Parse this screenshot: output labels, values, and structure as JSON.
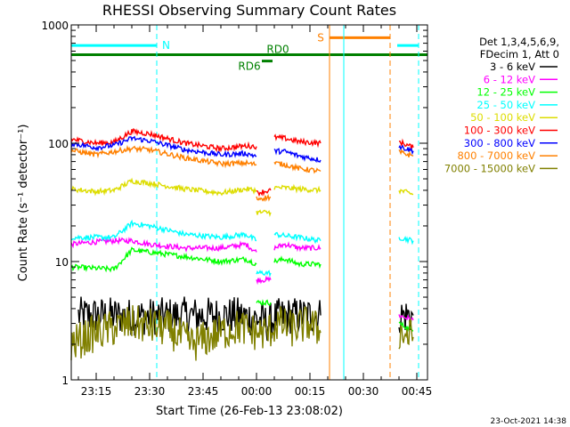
{
  "chart_data": {
    "type": "line",
    "title": "RHESSI Observing Summary Count Rates",
    "xlabel": "Start Time (26-Feb-13 23:08:02)",
    "ylabel": "Count Rate (s⁻¹ detector⁻¹)",
    "y_scale": "log",
    "ylim": [
      1,
      1000
    ],
    "xlim_minutes": [
      -52,
      48
    ],
    "x_ticks": [
      {
        "value": -45,
        "label": "23:15"
      },
      {
        "value": -30,
        "label": "23:30"
      },
      {
        "value": -15,
        "label": "23:45"
      },
      {
        "value": 0,
        "label": "00:00"
      },
      {
        "value": 15,
        "label": "00:15"
      },
      {
        "value": 30,
        "label": "00:30"
      },
      {
        "value": 45,
        "label": "00:45"
      }
    ],
    "y_ticks": [
      {
        "value": 1,
        "label": "1"
      },
      {
        "value": 10,
        "label": "10"
      },
      {
        "value": 100,
        "label": "100"
      },
      {
        "value": 1000,
        "label": "1000"
      }
    ],
    "legend": {
      "placement": "right",
      "header": [
        "Det 1,3,4,5,6,9,",
        "FDecim 1, Att 0"
      ]
    },
    "series": [
      {
        "name": "3 - 6 keV",
        "color": "#000000",
        "segments": [
          {
            "x": [
              -50,
              -40,
              -35,
              -20,
              -5,
              0,
              3,
              6,
              10,
              18
            ],
            "y": [
              3.5,
              3.5,
              3.4,
              3.5,
              3.5,
              3.3,
              3,
              3.4,
              3.5,
              3.5
            ]
          },
          {
            "x": [
              40,
              44
            ],
            "y": [
              3.5,
              3.5
            ]
          }
        ]
      },
      {
        "name": "6 - 12 keV",
        "color": "#ff00ff",
        "segments": [
          {
            "x": [
              -52,
              -47,
              -40,
              -35,
              -30,
              -20,
              -10,
              -3,
              0
            ],
            "y": [
              14,
              14.5,
              15,
              15,
              14,
              13,
              13,
              14,
              12
            ]
          },
          {
            "x": [
              0,
              4
            ],
            "y": [
              7,
              7
            ]
          },
          {
            "x": [
              5,
              8,
              12,
              18
            ],
            "y": [
              13,
              14,
              13,
              13
            ]
          },
          {
            "x": [
              40,
              44
            ],
            "y": [
              3.5,
              3.2
            ]
          }
        ]
      },
      {
        "name": "12 - 25 keV",
        "color": "#00ff00",
        "segments": [
          {
            "x": [
              -52,
              -40,
              -35,
              -30,
              -20,
              -10,
              -3,
              0
            ],
            "y": [
              9,
              8.6,
              12.5,
              12,
              11,
              10,
              10.5,
              9.5
            ]
          },
          {
            "x": [
              0,
              4
            ],
            "y": [
              4.5,
              4.5
            ]
          },
          {
            "x": [
              5,
              8,
              12,
              18
            ],
            "y": [
              10,
              10.5,
              9.5,
              9.5
            ]
          },
          {
            "x": [
              40,
              44
            ],
            "y": [
              3,
              2.6
            ]
          }
        ]
      },
      {
        "name": "25 - 50 keV",
        "color": "#00ffff",
        "segments": [
          {
            "x": [
              -52,
              -40,
              -35,
              -30,
              -20,
              -10,
              -3,
              0
            ],
            "y": [
              16,
              16,
              21,
              20,
              17,
              16,
              17,
              15
            ]
          },
          {
            "x": [
              0,
              4
            ],
            "y": [
              8,
              8
            ]
          },
          {
            "x": [
              5,
              8,
              12,
              18
            ],
            "y": [
              17,
              16.5,
              16,
              15
            ]
          },
          {
            "x": [
              40,
              44
            ],
            "y": [
              16,
              15
            ]
          }
        ]
      },
      {
        "name": "50 - 100 keV",
        "color": "#dddd00",
        "segments": [
          {
            "x": [
              -52,
              -45,
              -40,
              -35,
              -30,
              -20,
              -10,
              -3,
              0
            ],
            "y": [
              41,
              39,
              40,
              48,
              46,
              41,
              38,
              41,
              40
            ]
          },
          {
            "x": [
              0,
              4
            ],
            "y": [
              26,
              26
            ]
          },
          {
            "x": [
              5,
              8,
              12,
              18
            ],
            "y": [
              42,
              42,
              41,
              40
            ]
          },
          {
            "x": [
              40,
              44
            ],
            "y": [
              40,
              37
            ]
          }
        ]
      },
      {
        "name": "100 - 300 keV",
        "color": "#ff0000",
        "segments": [
          {
            "x": [
              -52,
              -45,
              -40,
              -35,
              -30,
              -20,
              -10,
              -3,
              0
            ],
            "y": [
              108,
              100,
              102,
              126,
              120,
              100,
              90,
              95,
              94
            ]
          },
          {
            "x": [
              0,
              4
            ],
            "y": [
              38,
              40
            ]
          },
          {
            "x": [
              5,
              8,
              12,
              18
            ],
            "y": [
              112,
              110,
              103,
              100
            ]
          },
          {
            "x": [
              40,
              44
            ],
            "y": [
              103,
              92
            ]
          }
        ]
      },
      {
        "name": "300 - 800 keV",
        "color": "#0000ff",
        "segments": [
          {
            "x": [
              -52,
              -45,
              -40,
              -35,
              -30,
              -20,
              -10,
              -3,
              0
            ],
            "y": [
              100,
              92,
              96,
              110,
              105,
              88,
              80,
              82,
              78
            ]
          },
          {
            "x": [
              5,
              8,
              12,
              18
            ],
            "y": [
              86,
              85,
              78,
              72
            ]
          },
          {
            "x": [
              40,
              44
            ],
            "y": [
              94,
              86
            ]
          }
        ]
      },
      {
        "name": "800 - 7000 keV",
        "color": "#ff8000",
        "segments": [
          {
            "x": [
              -52,
              -45,
              -40,
              -35,
              -30,
              -20,
              -10,
              -3,
              0
            ],
            "y": [
              87,
              80,
              85,
              90,
              88,
              75,
              67,
              68,
              66
            ]
          },
          {
            "x": [
              0,
              4
            ],
            "y": [
              34,
              35
            ]
          },
          {
            "x": [
              5,
              8,
              12,
              18
            ],
            "y": [
              68,
              66,
              61,
              58
            ]
          },
          {
            "x": [
              40,
              44
            ],
            "y": [
              84,
              78
            ]
          }
        ]
      },
      {
        "name": "7000 - 15000 keV",
        "color": "#808000",
        "segments": [
          {
            "x": [
              -52,
              -45,
              -35,
              -25,
              -18,
              -10,
              -5,
              0,
              3,
              6,
              10,
              15,
              18
            ],
            "y": [
              2,
              2.5,
              3,
              2.7,
              2,
              2.5,
              2.8,
              2.5,
              2.5,
              3,
              2.7,
              3,
              2.5
            ]
          },
          {
            "x": [
              40,
              44
            ],
            "y": [
              2.5,
              2.3
            ]
          }
        ]
      }
    ],
    "flags": [
      {
        "label": "N",
        "color": "#00ffff",
        "level": 670,
        "x_start": -52,
        "x_end": -28
      },
      {
        "label": "",
        "color": "#00ffff",
        "level": 670,
        "x_start": 39.5,
        "x_end": 45.5
      },
      {
        "label": "S",
        "color": "#ff8000",
        "level": 780,
        "x_start": 20.5,
        "x_end": 37.5
      },
      {
        "label": "RD0",
        "color": "#008000",
        "level": 560,
        "x_start": -52,
        "x_end": 48
      },
      {
        "label": "RD6",
        "color": "#008000",
        "level": 495,
        "x_start": 1.5,
        "x_end": 4.5
      }
    ],
    "vertical_markers": [
      {
        "x": -52,
        "style": "solid",
        "color": "#00ffff"
      },
      {
        "x": -28,
        "style": "dashed",
        "color": "#00ffff"
      },
      {
        "x": 20.5,
        "style": "solid",
        "color": "#ff8000"
      },
      {
        "x": 24.5,
        "style": "solid",
        "color": "#00ffff"
      },
      {
        "x": 37.5,
        "style": "dashed",
        "color": "#ff8000"
      },
      {
        "x": 45.5,
        "style": "dashed",
        "color": "#00ffff"
      }
    ]
  },
  "footer": {
    "timestamp": "23-Oct-2021 14:38"
  }
}
